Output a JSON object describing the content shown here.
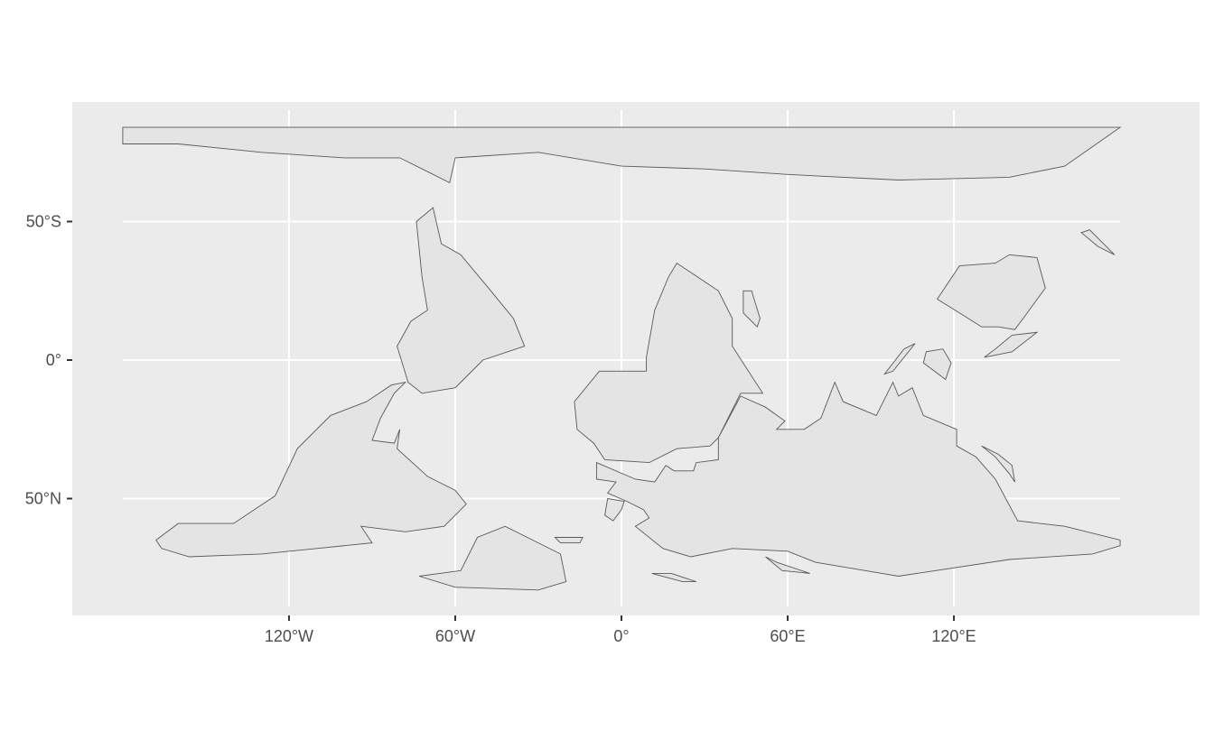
{
  "map": {
    "projection": "plate carree, flipped vertically (south up)",
    "x_axis": {
      "ticks": [
        {
          "value": -120,
          "label": "120°W"
        },
        {
          "value": -60,
          "label": "60°W"
        },
        {
          "value": 0,
          "label": "0°"
        },
        {
          "value": 60,
          "label": "60°E"
        },
        {
          "value": 120,
          "label": "120°E"
        }
      ]
    },
    "y_axis": {
      "ticks": [
        {
          "value": -50,
          "label": "50°S"
        },
        {
          "value": 0,
          "label": "0°"
        },
        {
          "value": 50,
          "label": "50°N"
        }
      ]
    },
    "colors": {
      "panel": "#ebebeb",
      "grid": "#ffffff",
      "land_fill": "#e4e4e4",
      "border": "#595959",
      "tick_text": "#4d4d4d",
      "tick_mark": "#333333"
    }
  }
}
